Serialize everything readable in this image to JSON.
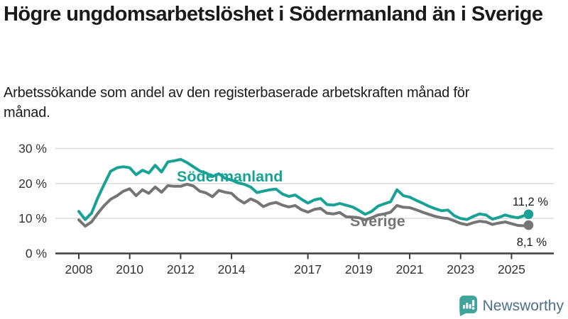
{
  "header": {
    "title": "Högre ungdomsarbetslöshet i Södermanland än i Sverige",
    "subtitle": "Arbetssökande som andel av den registerbaserade arbetskraften månad för månad."
  },
  "chart_data": {
    "type": "line",
    "title": "Högre ungdomsarbetslöshet i Södermanland än i Sverige",
    "ylabel": "",
    "xlabel": "",
    "ylim": [
      0,
      30
    ],
    "yticks": [
      0,
      10,
      20,
      30
    ],
    "ytick_labels": [
      "0 %",
      "10 %",
      "20 %",
      "30 %"
    ],
    "xticks": [
      2008,
      2010,
      2012,
      2014,
      2017,
      2019,
      2021,
      2023,
      2025
    ],
    "grid": "horizontal",
    "legend_position": "inline-labels",
    "x_unit": "decimal-year (quarterly estimates)",
    "x": [
      2008.0,
      2008.25,
      2008.5,
      2008.75,
      2009.0,
      2009.25,
      2009.5,
      2009.75,
      2010.0,
      2010.25,
      2010.5,
      2010.75,
      2011.0,
      2011.25,
      2011.5,
      2011.75,
      2012.0,
      2012.25,
      2012.5,
      2012.75,
      2013.0,
      2013.25,
      2013.5,
      2013.75,
      2014.0,
      2014.25,
      2014.5,
      2014.75,
      2015.0,
      2015.25,
      2015.5,
      2015.75,
      2016.0,
      2016.25,
      2016.5,
      2016.75,
      2017.0,
      2017.25,
      2017.5,
      2017.75,
      2018.0,
      2018.25,
      2018.5,
      2018.75,
      2019.0,
      2019.25,
      2019.5,
      2019.75,
      2020.0,
      2020.25,
      2020.5,
      2020.75,
      2021.0,
      2021.25,
      2021.5,
      2021.75,
      2022.0,
      2022.25,
      2022.5,
      2022.75,
      2023.0,
      2023.25,
      2023.5,
      2023.75,
      2024.0,
      2024.25,
      2024.5,
      2024.75,
      2025.0,
      2025.25,
      2025.5,
      2025.67
    ],
    "series": [
      {
        "name": "Södermanland",
        "color": "#17a295",
        "end_label": "11,2 %",
        "final_value": 11.2,
        "values": [
          12.0,
          9.7,
          11.5,
          16.0,
          19.8,
          23.5,
          24.5,
          24.8,
          24.5,
          22.5,
          23.8,
          23.0,
          25.2,
          23.3,
          26.2,
          26.5,
          26.9,
          26.0,
          24.8,
          23.6,
          23.0,
          22.0,
          22.8,
          21.5,
          21.0,
          20.2,
          19.8,
          19.0,
          17.4,
          17.8,
          18.2,
          18.4,
          17.0,
          16.3,
          16.7,
          15.5,
          14.4,
          15.3,
          15.7,
          14.0,
          13.8,
          14.3,
          13.8,
          13.3,
          12.3,
          11.2,
          12.0,
          13.5,
          14.2,
          14.8,
          18.2,
          16.5,
          16.1,
          15.2,
          14.4,
          13.5,
          12.8,
          12.2,
          12.4,
          10.8,
          10.0,
          9.7,
          10.6,
          11.3,
          11.0,
          9.8,
          10.3,
          11.0,
          10.5,
          10.2,
          10.8,
          11.2
        ]
      },
      {
        "name": "Sverige",
        "color": "#757575",
        "end_label": "8,1 %",
        "final_value": 8.1,
        "values": [
          9.6,
          7.8,
          9.0,
          11.5,
          13.7,
          15.5,
          16.5,
          17.8,
          18.5,
          16.5,
          18.2,
          17.2,
          19.0,
          17.5,
          19.4,
          19.2,
          19.2,
          19.8,
          19.3,
          17.8,
          17.3,
          16.2,
          18.0,
          17.5,
          17.2,
          15.5,
          14.4,
          15.6,
          14.8,
          13.4,
          14.2,
          14.6,
          13.8,
          13.3,
          13.7,
          12.5,
          11.8,
          12.6,
          12.9,
          11.5,
          11.3,
          11.7,
          10.5,
          10.4,
          10.2,
          9.6,
          10.2,
          11.0,
          11.3,
          11.8,
          13.7,
          13.2,
          13.1,
          12.5,
          11.8,
          11.2,
          10.6,
          10.2,
          10.0,
          9.3,
          8.6,
          8.2,
          8.8,
          9.2,
          9.0,
          8.3,
          8.7,
          9.0,
          8.5,
          8.0,
          7.9,
          8.1
        ]
      }
    ],
    "colors": {
      "grid": "#d9d9d9",
      "axis": "#3d3d3d",
      "tick_text": "#333333",
      "annotation_text": "#1a1a1a"
    }
  },
  "footer": {
    "brand": "Newsworthy",
    "icon": "newsworthy-speech-bubble-chart-icon",
    "icon_color": "#3ea49c",
    "text_color": "#4d7184"
  }
}
